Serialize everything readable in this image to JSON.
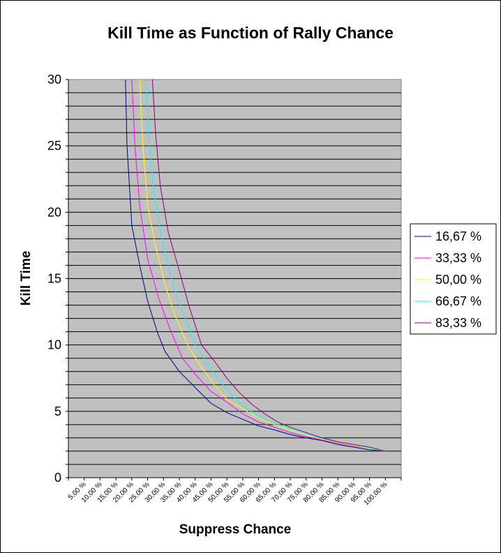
{
  "chart_data": {
    "type": "line",
    "title": "Kill Time as Function of Rally Chance",
    "xlabel": "Suppress Chance",
    "ylabel": "Kill Time",
    "ylim": [
      0,
      30
    ],
    "y_ticks": [
      "0",
      "5",
      "10",
      "15",
      "20",
      "25",
      "30"
    ],
    "y_tick_values": [
      0,
      5,
      10,
      15,
      20,
      25,
      30
    ],
    "y_minor_step": 1,
    "grid": true,
    "legend_position": "right",
    "categories": [
      "5,00 %",
      "10,00 %",
      "15,00 %",
      "20,00 %",
      "25,00 %",
      "30,00 %",
      "35,00 %",
      "40,00 %",
      "45,00 %",
      "50,00 %",
      "55,00 %",
      "60,00 %",
      "65,00 %",
      "70,00 %",
      "75,00 %",
      "80,00 %",
      "85,00 %",
      "90,00 %",
      "95,00 %",
      "100,00 %"
    ],
    "series": [
      {
        "name": "16,67 %",
        "color": "#000080",
        "points": [
          [
            0.18,
            30
          ],
          [
            0.185,
            25
          ],
          [
            0.2,
            19
          ],
          [
            0.225,
            16
          ],
          [
            0.25,
            13.3
          ],
          [
            0.28,
            11
          ],
          [
            0.305,
            9.5
          ],
          [
            0.35,
            8
          ],
          [
            0.4,
            6.8
          ],
          [
            0.45,
            5.6
          ],
          [
            0.5,
            4.9
          ],
          [
            0.55,
            4.4
          ],
          [
            0.6,
            3.9
          ],
          [
            0.65,
            3.6
          ],
          [
            0.7,
            3.25
          ],
          [
            0.75,
            3.0
          ],
          [
            0.8,
            2.8
          ],
          [
            0.85,
            2.5
          ],
          [
            0.9,
            2.3
          ],
          [
            0.95,
            2.1
          ],
          [
            1.0,
            2.0
          ]
        ]
      },
      {
        "name": "33,33 %",
        "color": "#FF00FF",
        "points": [
          [
            0.2,
            30
          ],
          [
            0.21,
            25
          ],
          [
            0.225,
            20.5
          ],
          [
            0.25,
            16.5
          ],
          [
            0.285,
            13.5
          ],
          [
            0.32,
            11.2
          ],
          [
            0.36,
            9
          ],
          [
            0.4,
            7.8
          ],
          [
            0.45,
            6.5
          ],
          [
            0.5,
            5.7
          ],
          [
            0.55,
            4.8
          ],
          [
            0.6,
            4.2
          ],
          [
            0.65,
            3.8
          ],
          [
            0.7,
            3.4
          ],
          [
            0.75,
            3.1
          ],
          [
            0.8,
            2.85
          ],
          [
            0.85,
            2.6
          ],
          [
            0.9,
            2.4
          ],
          [
            0.95,
            2.2
          ],
          [
            1.0,
            2.0
          ]
        ]
      },
      {
        "name": "50,00 %",
        "color": "#FFFF00",
        "points": [
          [
            0.225,
            30
          ],
          [
            0.235,
            25
          ],
          [
            0.25,
            20.5
          ],
          [
            0.275,
            17.5
          ],
          [
            0.305,
            14.5
          ],
          [
            0.34,
            12
          ],
          [
            0.38,
            9.8
          ],
          [
            0.42,
            8.3
          ],
          [
            0.46,
            7
          ],
          [
            0.5,
            5.9
          ],
          [
            0.55,
            5.2
          ],
          [
            0.6,
            4.5
          ],
          [
            0.65,
            4.0
          ],
          [
            0.7,
            3.6
          ],
          [
            0.75,
            3.2
          ],
          [
            0.8,
            2.9
          ],
          [
            0.85,
            2.65
          ],
          [
            0.9,
            2.45
          ],
          [
            0.95,
            2.2
          ],
          [
            1.0,
            2.0
          ]
        ]
      },
      {
        "name": "66,67 %",
        "color": "#00FFFF",
        "points": [
          [
            0.245,
            30
          ],
          [
            0.255,
            25
          ],
          [
            0.27,
            21.5
          ],
          [
            0.295,
            18
          ],
          [
            0.325,
            15
          ],
          [
            0.36,
            12.5
          ],
          [
            0.4,
            10
          ],
          [
            0.44,
            8.5
          ],
          [
            0.48,
            7.2
          ],
          [
            0.52,
            6.1
          ],
          [
            0.56,
            5.3
          ],
          [
            0.6,
            4.6
          ],
          [
            0.65,
            4.1
          ],
          [
            0.7,
            3.7
          ],
          [
            0.75,
            3.3
          ],
          [
            0.8,
            2.95
          ],
          [
            0.85,
            2.7
          ],
          [
            0.9,
            2.5
          ],
          [
            0.95,
            2.25
          ],
          [
            1.0,
            2.0
          ]
        ]
      },
      {
        "name": "83,33 %",
        "color": "#800080",
        "points": [
          [
            0.265,
            30
          ],
          [
            0.275,
            26
          ],
          [
            0.29,
            22
          ],
          [
            0.315,
            18.5
          ],
          [
            0.345,
            16
          ],
          [
            0.38,
            13
          ],
          [
            0.42,
            10
          ],
          [
            0.46,
            8.8
          ],
          [
            0.5,
            7.5
          ],
          [
            0.54,
            6.4
          ],
          [
            0.58,
            5.5
          ],
          [
            0.62,
            4.8
          ],
          [
            0.66,
            4.2
          ],
          [
            0.7,
            3.8
          ],
          [
            0.75,
            3.4
          ],
          [
            0.8,
            3.0
          ],
          [
            0.85,
            2.7
          ],
          [
            0.9,
            2.5
          ],
          [
            0.95,
            2.3
          ],
          [
            1.0,
            2.0
          ]
        ]
      }
    ]
  }
}
